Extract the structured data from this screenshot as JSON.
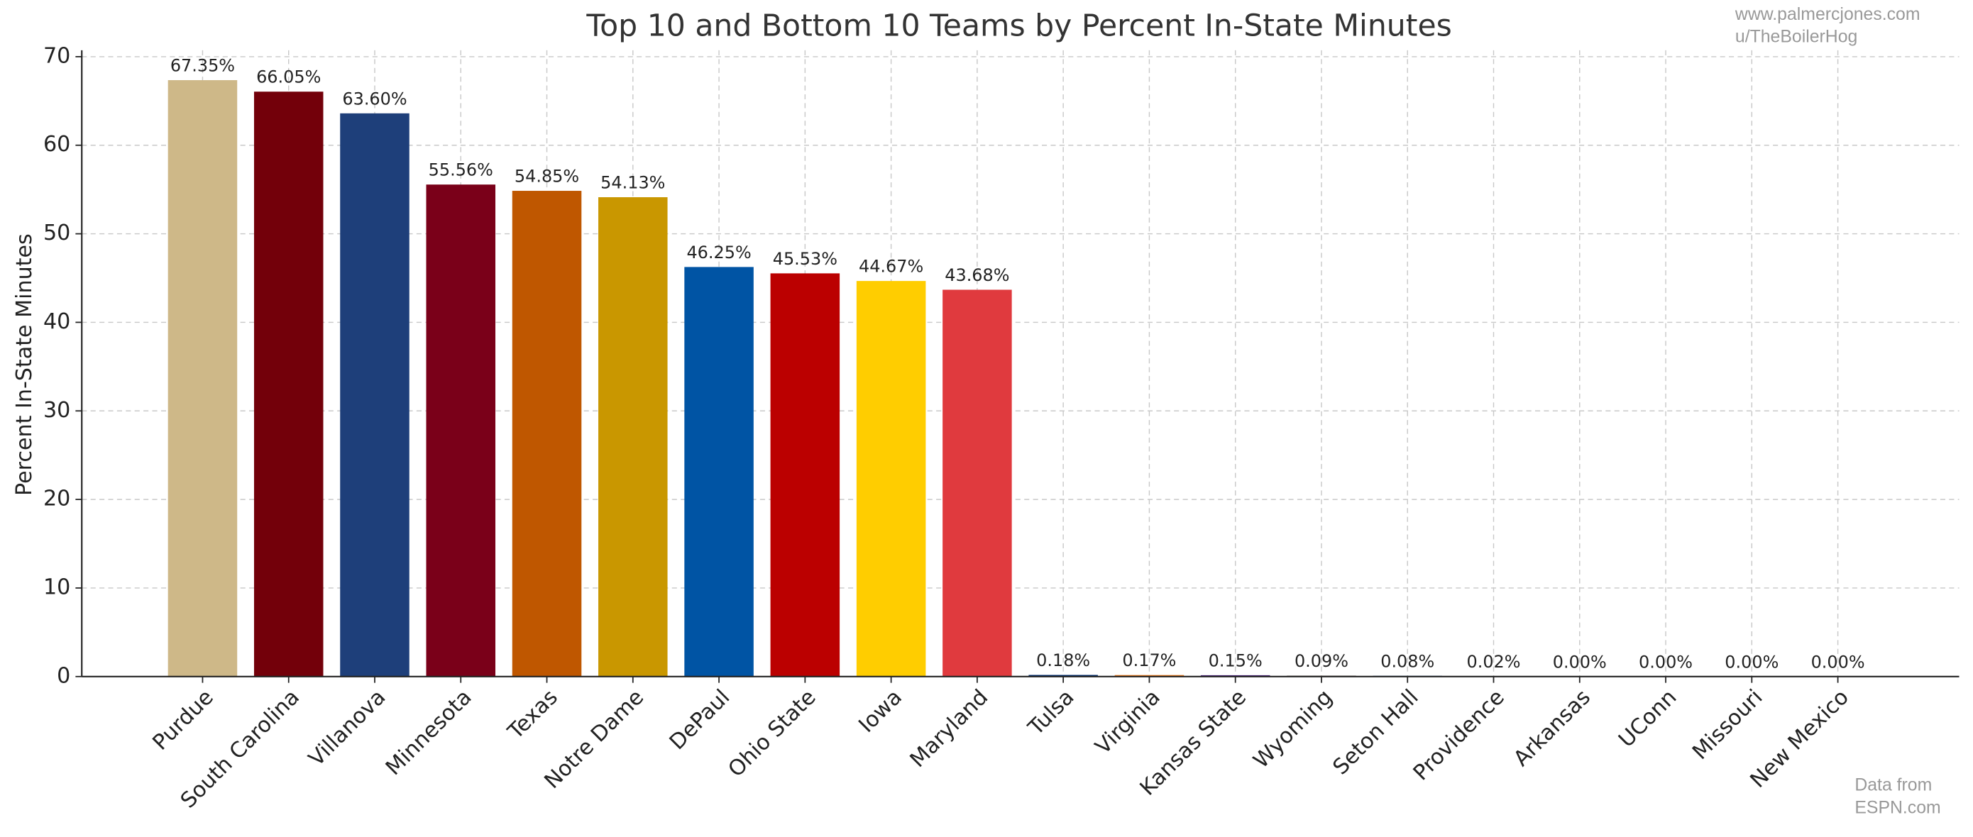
{
  "chart_data": {
    "type": "bar",
    "title": "Top 10 and Bottom 10 Teams by Percent In-State Minutes",
    "y_label": "Percent In-State Minutes",
    "credits": [
      "www.palmercjones.com",
      "u/TheBoilerHog"
    ],
    "source": [
      "Data from",
      "ESPN.com"
    ],
    "categories": [
      "Purdue",
      "South Carolina",
      "Villanova",
      "Minnesota",
      "Texas",
      "Notre Dame",
      "DePaul",
      "Ohio State",
      "Iowa",
      "Maryland",
      "Tulsa",
      "Virginia",
      "Kansas State",
      "Wyoming",
      "Seton Hall",
      "Providence",
      "Arkansas",
      "UConn",
      "Missouri",
      "New Mexico"
    ],
    "values": [
      67.35,
      66.05,
      63.6,
      55.56,
      54.85,
      54.13,
      46.25,
      45.53,
      44.67,
      43.68,
      0.18,
      0.17,
      0.15,
      0.09,
      0.08,
      0.02,
      0,
      0,
      0,
      0
    ],
    "value_labels": [
      "67.35%",
      "66.05%",
      "63.60%",
      "55.56%",
      "54.85%",
      "54.13%",
      "46.25%",
      "45.53%",
      "44.67%",
      "43.68%",
      "0.18%",
      "0.17%",
      "0.15%",
      "0.09%",
      "0.08%",
      "0.02%",
      "0.00%",
      "0.00%",
      "0.00%",
      "0.00%"
    ],
    "colors": [
      "#CEB888",
      "#73000A",
      "#1E3F7A",
      "#7A0019",
      "#BF5700",
      "#C99700",
      "#0054A4",
      "#BB0000",
      "#FFCD00",
      "#E03A3E",
      "#002D72",
      "#F48120",
      "#512888",
      "#492F24",
      "#004488",
      "#000000",
      "#9D2235",
      "#000E2F",
      "#F1B82D",
      "#BA0C2F"
    ],
    "ylim": [
      0,
      70.72
    ],
    "yticks": [
      0,
      10,
      20,
      30,
      40,
      50,
      60,
      70
    ],
    "grid": true
  }
}
